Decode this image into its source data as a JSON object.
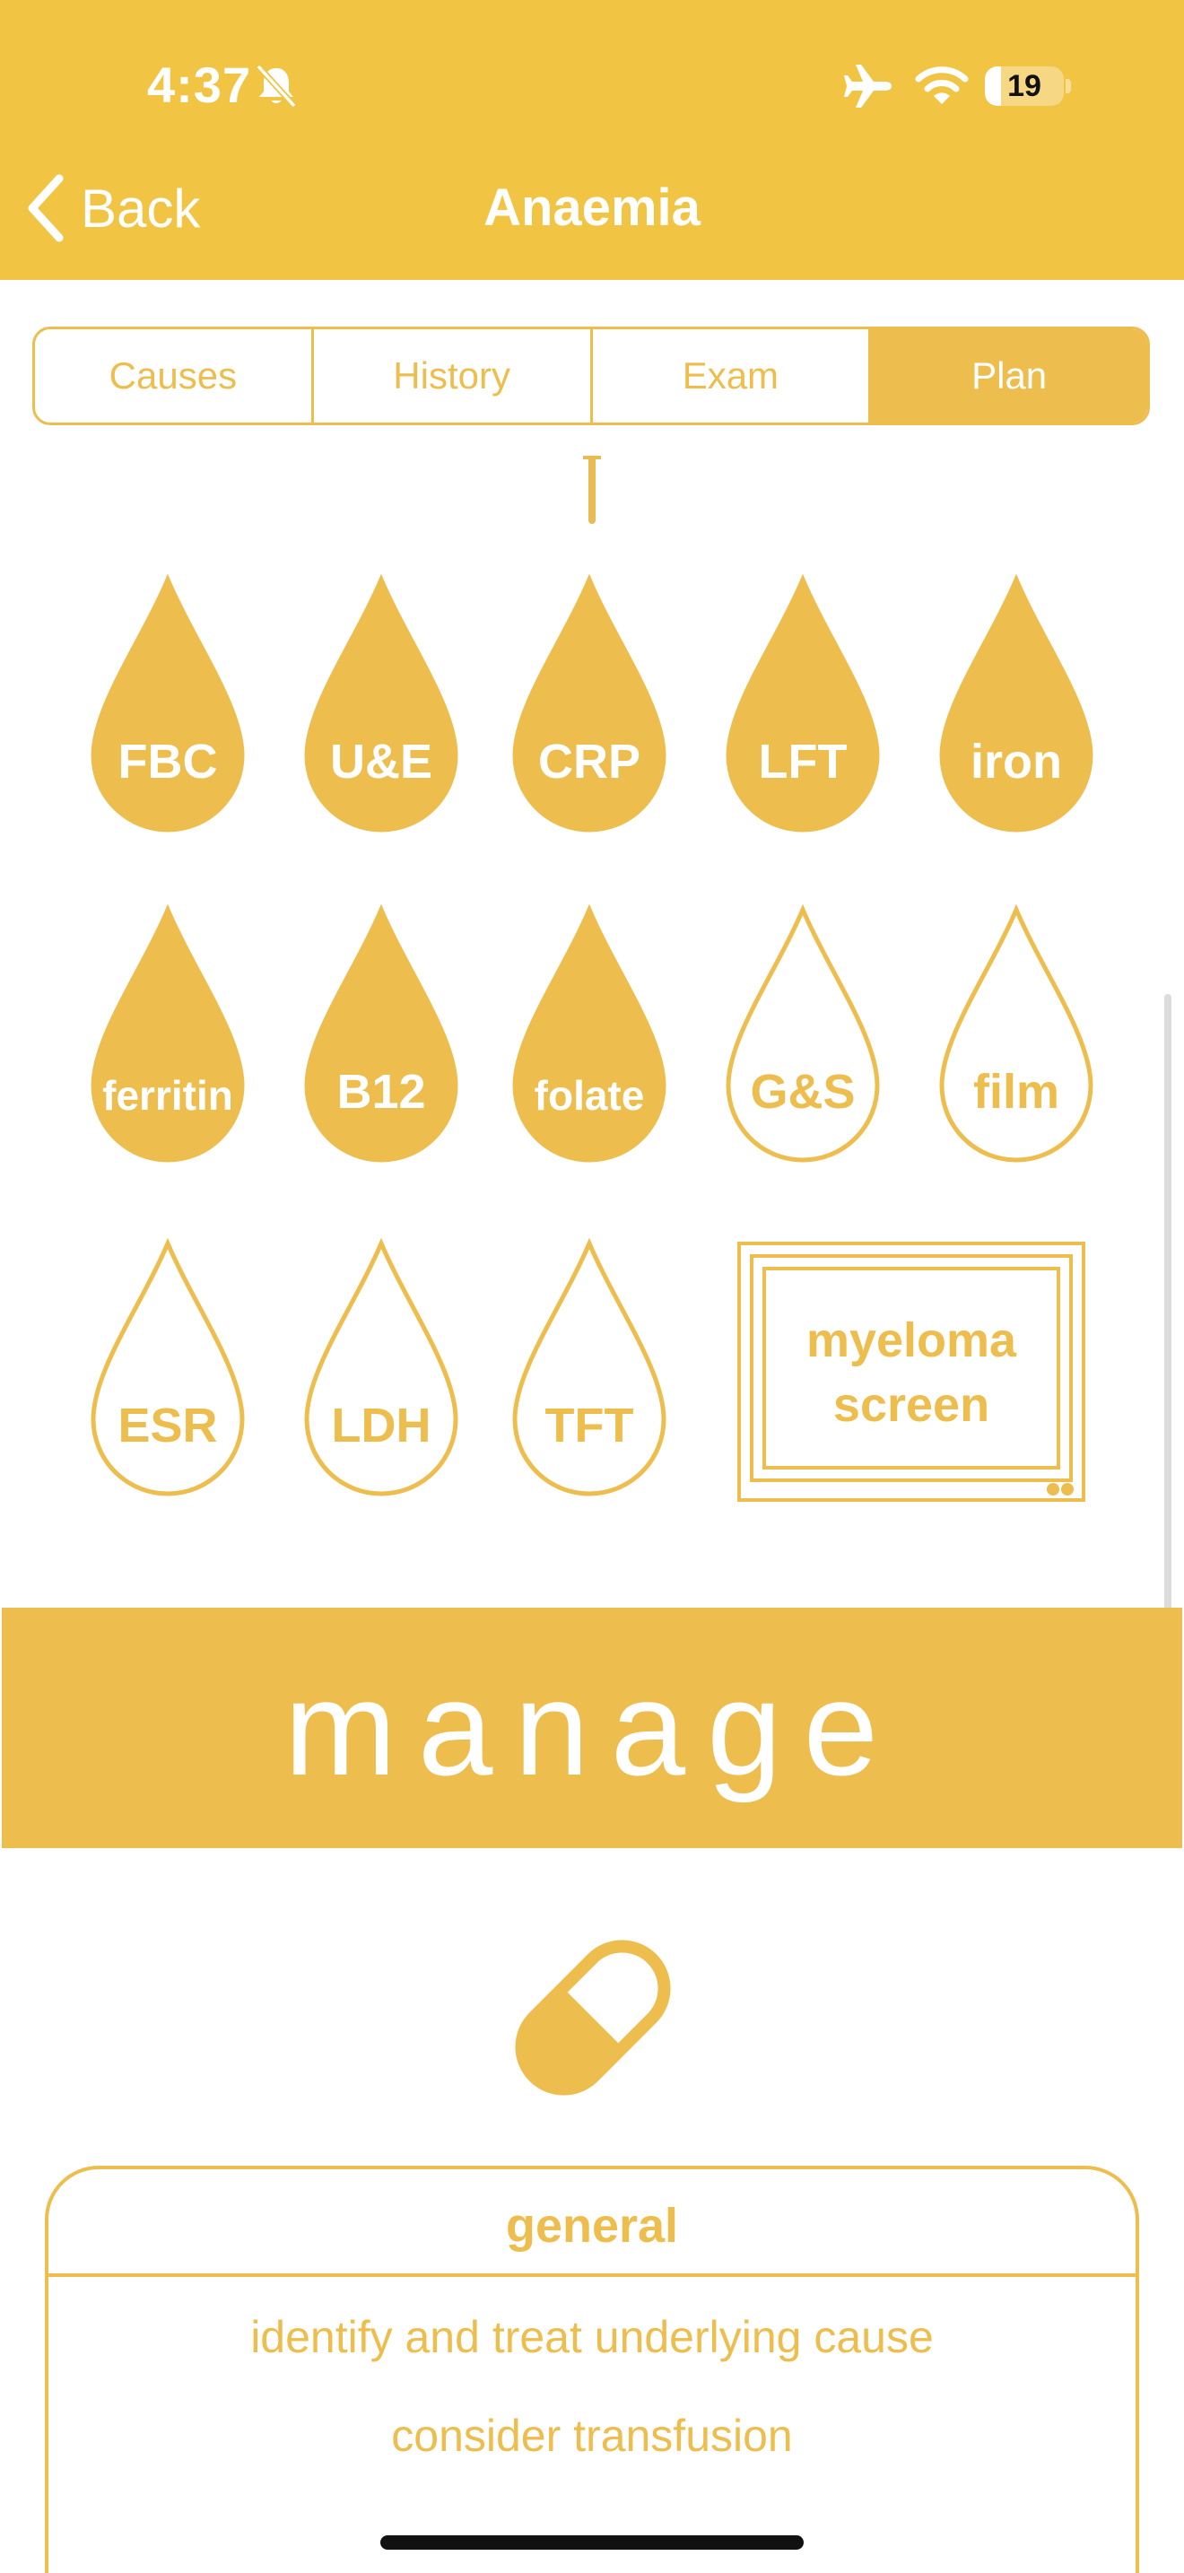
{
  "colors": {
    "header": "#F2C443",
    "accent": "#EDBE4E",
    "text_on_accent": "#FFFFFF"
  },
  "status_bar": {
    "time": "4:37",
    "battery": "19",
    "icons": [
      "bell-slash-icon",
      "airplane-icon",
      "wifi-icon",
      "battery-icon"
    ]
  },
  "nav": {
    "back_label": "Back",
    "title": "Anaemia"
  },
  "tabs": [
    {
      "label": "Causes",
      "active": false
    },
    {
      "label": "History",
      "active": false
    },
    {
      "label": "Exam",
      "active": false
    },
    {
      "label": "Plan",
      "active": true
    }
  ],
  "investigations": [
    {
      "label": "FBC",
      "filled": true
    },
    {
      "label": "U&E",
      "filled": true
    },
    {
      "label": "CRP",
      "filled": true
    },
    {
      "label": "LFT",
      "filled": true
    },
    {
      "label": "iron",
      "filled": true
    },
    {
      "label": "ferritin",
      "filled": true
    },
    {
      "label": "B12",
      "filled": true
    },
    {
      "label": "folate",
      "filled": true
    },
    {
      "label": "G&S",
      "filled": false
    },
    {
      "label": "film",
      "filled": false
    },
    {
      "label": "ESR",
      "filled": false
    },
    {
      "label": "LDH",
      "filled": false
    },
    {
      "label": "TFT",
      "filled": false
    }
  ],
  "myeloma": {
    "line1": "myeloma",
    "line2": "screen"
  },
  "manage": {
    "title": "manage",
    "icon": "pill-icon"
  },
  "general_card": {
    "title": "general",
    "items": [
      "identify and treat underlying cause",
      "consider transfusion"
    ]
  }
}
